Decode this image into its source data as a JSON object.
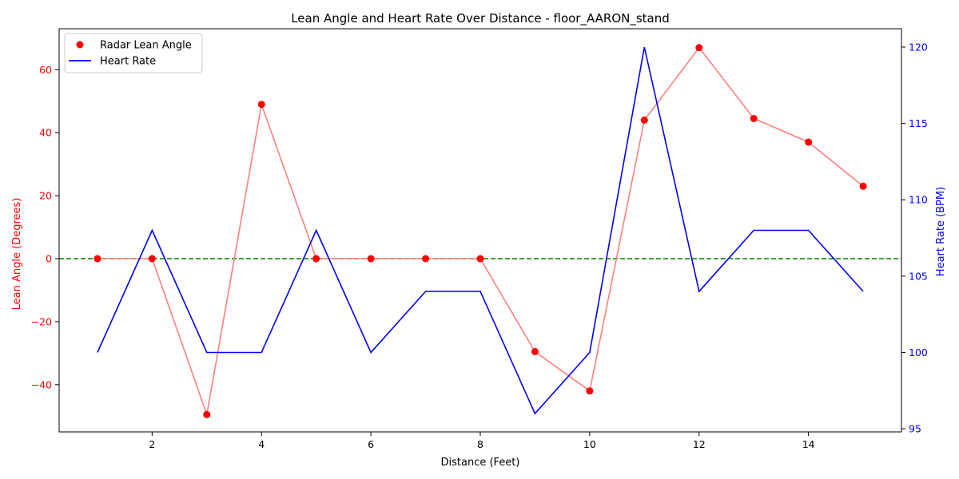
{
  "chart_data": {
    "type": "line",
    "title": "Lean Angle and Heart Rate Over Distance - floor_AARON_stand",
    "xlabel": "Distance (Feet)",
    "ylabel_left": "Lean Angle (Degrees)",
    "ylabel_right": "Heart Rate (BPM)",
    "x": [
      1,
      2,
      3,
      4,
      5,
      6,
      7,
      8,
      9,
      10,
      11,
      12,
      13,
      14,
      15
    ],
    "xlim": [
      0.3,
      15.7
    ],
    "xticks": [
      2,
      4,
      6,
      8,
      10,
      12,
      14
    ],
    "ylim_left": [
      -55,
      73
    ],
    "yticks_left": [
      -40,
      -20,
      0,
      20,
      40,
      60
    ],
    "ylim_right": [
      94.8,
      121.2
    ],
    "yticks_right": [
      95,
      100,
      105,
      110,
      115,
      120
    ],
    "reference_line": {
      "y": 0,
      "axis": "left",
      "color": "#008000",
      "style": "dashed"
    },
    "series": [
      {
        "name": "Radar Lean Angle",
        "axis": "left",
        "marker": "circle",
        "color": "#ff0000",
        "line_color": "#ff8080",
        "values": [
          0,
          0,
          -49.5,
          49,
          0,
          0,
          0,
          0,
          -29.5,
          -42,
          44,
          67,
          44.5,
          37,
          23
        ]
      },
      {
        "name": "Heart Rate",
        "axis": "right",
        "marker": "none",
        "color": "#0000ff",
        "values": [
          100,
          108,
          100,
          100,
          108,
          100,
          104,
          104,
          96,
          100,
          120,
          104,
          108,
          108,
          104
        ]
      }
    ],
    "legend": {
      "placement": "top-left"
    },
    "colors": {
      "left_axis": "#ff0000",
      "right_axis": "#0000ff"
    }
  }
}
